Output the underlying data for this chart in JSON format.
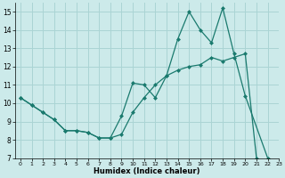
{
  "xlabel": "Humidex (Indice chaleur)",
  "ylabel": "",
  "xlim": [
    -0.5,
    23
  ],
  "ylim": [
    7,
    15.5
  ],
  "yticks": [
    7,
    8,
    9,
    10,
    11,
    12,
    13,
    14,
    15
  ],
  "xticks": [
    0,
    1,
    2,
    3,
    4,
    5,
    6,
    7,
    8,
    9,
    10,
    11,
    12,
    13,
    14,
    15,
    16,
    17,
    18,
    19,
    20,
    21,
    22,
    23
  ],
  "line1_x": [
    0,
    1,
    2,
    3,
    4,
    5,
    6,
    7,
    8,
    9,
    10,
    11,
    12,
    13,
    14,
    15,
    16,
    17,
    18,
    19,
    20,
    22
  ],
  "line1_y": [
    10.3,
    9.9,
    9.5,
    9.1,
    8.5,
    8.5,
    8.4,
    8.1,
    8.1,
    9.3,
    11.1,
    11.0,
    10.3,
    11.5,
    13.5,
    15.0,
    14.0,
    13.3,
    15.2,
    12.7,
    10.4,
    7.0
  ],
  "line2_x": [
    0,
    1,
    2,
    3,
    4,
    5,
    6,
    7,
    8,
    9,
    10,
    11,
    12,
    13,
    14,
    15,
    16,
    17,
    18,
    19,
    20,
    21
  ],
  "line2_y": [
    10.3,
    9.9,
    9.5,
    9.1,
    8.5,
    8.5,
    8.4,
    8.1,
    8.1,
    8.3,
    9.5,
    10.3,
    11.0,
    11.5,
    11.8,
    12.0,
    12.1,
    12.5,
    12.3,
    12.5,
    12.7,
    7.0
  ],
  "line_color": "#1a7a6e",
  "bg_color": "#cceaea",
  "grid_color": "#aad4d4",
  "figsize": [
    3.2,
    2.0
  ],
  "dpi": 100
}
